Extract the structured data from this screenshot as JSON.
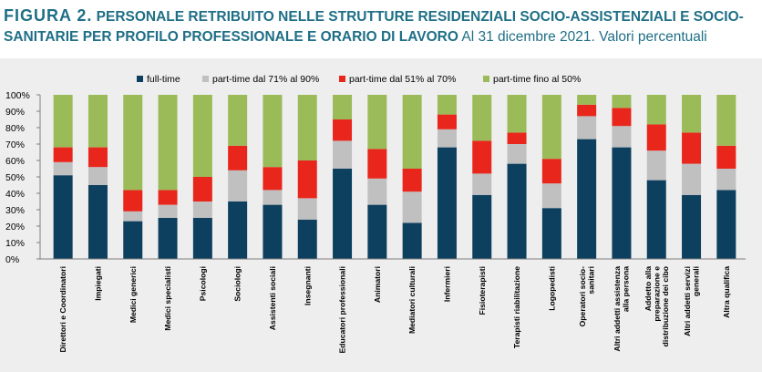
{
  "title": {
    "figure_label": "FIGURA 2.",
    "main": "PERSONALE RETRIBUITO NELLE STRUTTURE RESIDENZIALI SOCIO-ASSISTENZIALI E SOCIO-SANITARIE PER PROFILO PROFESSIONALE E ORARIO DI LAVORO",
    "subtitle": "Al 31 dicembre 2021. Valori percentuali"
  },
  "chart_data": {
    "type": "bar",
    "stacked": true,
    "legend_position": "top",
    "grid": false,
    "ylim": [
      0,
      100
    ],
    "yticks": [
      "0%",
      "10%",
      "20%",
      "30%",
      "40%",
      "50%",
      "60%",
      "70%",
      "80%",
      "90%",
      "100%"
    ],
    "categories": [
      [
        "Direttori e Coordinatori"
      ],
      [
        "Impiegati"
      ],
      [
        "Medici generici"
      ],
      [
        "Medici specialisti"
      ],
      [
        "Psicologi"
      ],
      [
        "Sociologi"
      ],
      [
        "Assistenti sociali"
      ],
      [
        "Insegnanti"
      ],
      [
        "Educatori professionali"
      ],
      [
        "Animatori"
      ],
      [
        "Mediatori culturali"
      ],
      [
        "Infermieri"
      ],
      [
        "Fisioterapisti"
      ],
      [
        "Terapisti riabilitazione"
      ],
      [
        "Logopedisti"
      ],
      [
        "Operatori socio-",
        "sanitari"
      ],
      [
        "Altri addetti assistenza",
        "alla persona"
      ],
      [
        "Addetto alla",
        "preparazione e",
        "distribuzione dei cibo"
      ],
      [
        "Altri addetti servizi",
        "generali"
      ],
      [
        "Altra qualifica"
      ]
    ],
    "series": [
      {
        "name": "full-time",
        "color": "#0d3f5e",
        "values": [
          51,
          45,
          23,
          25,
          25,
          35,
          33,
          24,
          55,
          33,
          22,
          68,
          39,
          58,
          31,
          73,
          68,
          48,
          39,
          42
        ]
      },
      {
        "name": "part-time dal 71% al 90%",
        "color": "#c0c0c0",
        "values": [
          8,
          11,
          6,
          8,
          10,
          19,
          9,
          13,
          17,
          16,
          19,
          11,
          13,
          12,
          15,
          14,
          13,
          18,
          19,
          13
        ]
      },
      {
        "name": "part-time dal 51% al 70%",
        "color": "#e8261c",
        "values": [
          9,
          12,
          13,
          9,
          15,
          15,
          14,
          23,
          13,
          18,
          14,
          9,
          20,
          7,
          15,
          7,
          11,
          16,
          19,
          14
        ]
      },
      {
        "name": "part-time fino al 50%",
        "color": "#9bbb59",
        "values": [
          32,
          32,
          58,
          58,
          50,
          31,
          44,
          40,
          15,
          33,
          45,
          12,
          28,
          23,
          39,
          6,
          8,
          18,
          23,
          31
        ]
      }
    ]
  }
}
